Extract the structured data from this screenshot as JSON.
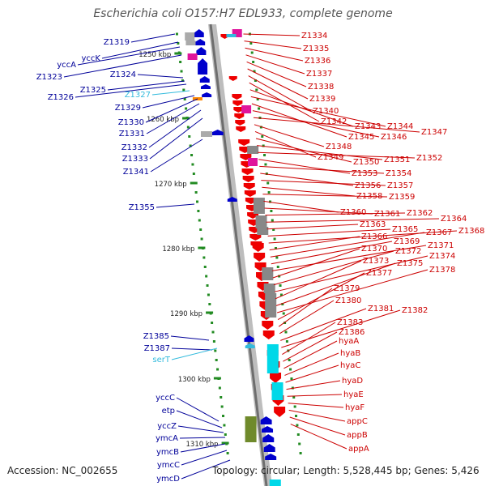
{
  "title": "Escherichia coli O157:H7 EDL933, complete genome",
  "footer": {
    "accession": "Accession: NC_002655",
    "summary": "Topology: circular; Length: 5,528,445 bp; Genes: 5,426"
  },
  "colors": {
    "backbone": "#8a8a8a",
    "forward_gene": "#0000cc",
    "reverse_gene": "#ee0000",
    "rna_gene": "#33bbdd",
    "scale_tick": "#228b22",
    "label_text": "#000099",
    "label_text_right": "#cc0000"
  },
  "scale": {
    "ticks": [
      {
        "label": "1250 kbp"
      },
      {
        "label": "1260 kbp"
      },
      {
        "label": "1270 kbp"
      },
      {
        "label": "1280 kbp"
      },
      {
        "label": "1290 kbp"
      },
      {
        "label": "1300 kbp"
      },
      {
        "label": "1310 kbp"
      }
    ]
  },
  "left_labels": [
    {
      "text": "Z1319",
      "kind": "gene"
    },
    {
      "text": "yccK",
      "kind": "gene"
    },
    {
      "text": "yccA",
      "kind": "gene"
    },
    {
      "text": "Z1323",
      "kind": "gene"
    },
    {
      "text": "Z1324",
      "kind": "gene"
    },
    {
      "text": "Z1325",
      "kind": "gene"
    },
    {
      "text": "Z1326",
      "kind": "gene"
    },
    {
      "text": "Z1327",
      "kind": "rna"
    },
    {
      "text": "Z1329",
      "kind": "gene"
    },
    {
      "text": "Z1330",
      "kind": "gene"
    },
    {
      "text": "Z1331",
      "kind": "gene"
    },
    {
      "text": "Z1332",
      "kind": "gene"
    },
    {
      "text": "Z1333",
      "kind": "gene"
    },
    {
      "text": "Z1341",
      "kind": "gene"
    },
    {
      "text": "Z1355",
      "kind": "gene"
    },
    {
      "text": "Z1385",
      "kind": "gene"
    },
    {
      "text": "Z1387",
      "kind": "gene"
    },
    {
      "text": "serT",
      "kind": "rna"
    },
    {
      "text": "yccC",
      "kind": "gene"
    },
    {
      "text": "etp",
      "kind": "gene"
    },
    {
      "text": "yccZ",
      "kind": "gene"
    },
    {
      "text": "ymcA",
      "kind": "gene"
    },
    {
      "text": "ymcB",
      "kind": "gene"
    },
    {
      "text": "ymcC",
      "kind": "gene"
    },
    {
      "text": "ymcD",
      "kind": "gene"
    }
  ],
  "right_labels": [
    {
      "text": "Z1334"
    },
    {
      "text": "Z1335"
    },
    {
      "text": "Z1336"
    },
    {
      "text": "Z1337"
    },
    {
      "text": "Z1338"
    },
    {
      "text": "Z1339"
    },
    {
      "text": "Z1340"
    },
    {
      "text": "Z1342"
    },
    {
      "text": "Z1343"
    },
    {
      "text": "Z1344"
    },
    {
      "text": "Z1345"
    },
    {
      "text": "Z1346"
    },
    {
      "text": "Z1347"
    },
    {
      "text": "Z1348"
    },
    {
      "text": "Z1349"
    },
    {
      "text": "Z1350"
    },
    {
      "text": "Z1351"
    },
    {
      "text": "Z1352"
    },
    {
      "text": "Z1353"
    },
    {
      "text": "Z1354"
    },
    {
      "text": "Z1356"
    },
    {
      "text": "Z1357"
    },
    {
      "text": "Z1358"
    },
    {
      "text": "Z1359"
    },
    {
      "text": "Z1360"
    },
    {
      "text": "Z1361"
    },
    {
      "text": "Z1362"
    },
    {
      "text": "Z1364"
    },
    {
      "text": "Z1363"
    },
    {
      "text": "Z1365"
    },
    {
      "text": "Z1368"
    },
    {
      "text": "Z1366"
    },
    {
      "text": "Z1367"
    },
    {
      "text": "Z1369"
    },
    {
      "text": "Z1371"
    },
    {
      "text": "Z1370"
    },
    {
      "text": "Z1372"
    },
    {
      "text": "Z1374"
    },
    {
      "text": "Z1373"
    },
    {
      "text": "Z1375"
    },
    {
      "text": "Z1378"
    },
    {
      "text": "Z1377"
    },
    {
      "text": "Z1379"
    },
    {
      "text": "Z1380"
    },
    {
      "text": "Z1381"
    },
    {
      "text": "Z1382"
    },
    {
      "text": "Z1383"
    },
    {
      "text": "Z1386"
    },
    {
      "text": "hyaA"
    },
    {
      "text": "hyaB"
    },
    {
      "text": "hyaC"
    },
    {
      "text": "hyaD"
    },
    {
      "text": "hyaE"
    },
    {
      "text": "hyaF"
    },
    {
      "text": "appC"
    },
    {
      "text": "appB"
    },
    {
      "text": "appA"
    }
  ]
}
